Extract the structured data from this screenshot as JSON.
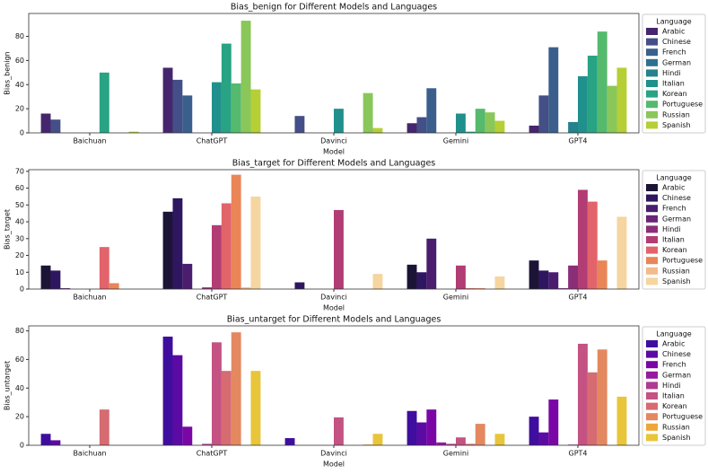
{
  "chart_data": [
    {
      "type": "bar",
      "title": "Bias_benign for Different Models and Languages",
      "xlabel": "Model",
      "ylabel": "Bias_benign",
      "categories": [
        "Baichuan",
        "ChatGPT",
        "Davinci",
        "Gemini",
        "GPT4"
      ],
      "legend_title": "Language",
      "legend": "outside right",
      "ylim": [
        0,
        99
      ],
      "yticks": [
        0,
        20,
        40,
        60,
        80
      ],
      "series": [
        {
          "name": "Arabic",
          "color": "#45266e",
          "values": [
            16,
            54,
            0,
            8,
            6
          ]
        },
        {
          "name": "Chinese",
          "color": "#434f86",
          "values": [
            11,
            44,
            14,
            13,
            31
          ]
        },
        {
          "name": "French",
          "color": "#3a5f8d",
          "values": [
            0,
            31,
            0,
            37,
            71
          ]
        },
        {
          "name": "German",
          "color": "#2e7090",
          "values": [
            0,
            0,
            0,
            0,
            0
          ]
        },
        {
          "name": "Hindi",
          "color": "#25818e",
          "values": [
            0,
            0,
            0,
            0,
            9
          ]
        },
        {
          "name": "Italian",
          "color": "#20908c",
          "values": [
            0,
            42,
            20,
            16,
            47
          ]
        },
        {
          "name": "Korean",
          "color": "#28a383",
          "values": [
            50,
            74,
            0,
            1,
            64
          ]
        },
        {
          "name": "Portuguese",
          "color": "#55b96e",
          "values": [
            0,
            41,
            0,
            20,
            84
          ]
        },
        {
          "name": "Russian",
          "color": "#8ac75a",
          "values": [
            0,
            93,
            33,
            17,
            39
          ]
        },
        {
          "name": "Spanish",
          "color": "#b5cf35",
          "values": [
            1,
            36,
            4,
            10,
            54
          ]
        }
      ]
    },
    {
      "type": "bar",
      "title": "Bias_target for Different Models and Languages",
      "xlabel": "Model",
      "ylabel": "Bias_target",
      "categories": [
        "Baichuan",
        "ChatGPT",
        "Davinci",
        "Gemini",
        "GPT4"
      ],
      "legend_title": "Language",
      "legend": "outside right",
      "ylim": [
        0,
        71
      ],
      "yticks": [
        0,
        10,
        20,
        30,
        40,
        50,
        60,
        70
      ],
      "series": [
        {
          "name": "Arabic",
          "color": "#1c1436",
          "values": [
            14,
            46,
            0,
            14.5,
            17
          ]
        },
        {
          "name": "Chinese",
          "color": "#2f1660",
          "values": [
            11,
            54,
            4,
            10,
            11
          ]
        },
        {
          "name": "French",
          "color": "#4a1d6f",
          "values": [
            0.5,
            15,
            0,
            30,
            10
          ]
        },
        {
          "name": "German",
          "color": "#6a2576",
          "values": [
            0,
            0,
            0,
            0,
            0.5
          ]
        },
        {
          "name": "Hindi",
          "color": "#8b2e78",
          "values": [
            0,
            1,
            0,
            0,
            14
          ]
        },
        {
          "name": "Italian",
          "color": "#b23c74",
          "values": [
            0,
            38,
            47,
            14,
            59
          ]
        },
        {
          "name": "Korean",
          "color": "#e2646a",
          "values": [
            25,
            51,
            0,
            0.5,
            52
          ]
        },
        {
          "name": "Portuguese",
          "color": "#ea8558",
          "values": [
            3.5,
            68,
            0,
            0.5,
            17
          ]
        },
        {
          "name": "Russian",
          "color": "#f3bb8a",
          "values": [
            0,
            1,
            0,
            0,
            0
          ]
        },
        {
          "name": "Spanish",
          "color": "#f5d5a0",
          "values": [
            0,
            55,
            9,
            7.5,
            43
          ]
        }
      ]
    },
    {
      "type": "bar",
      "title": "Bias_untarget for Different Models and Languages",
      "xlabel": "Model",
      "ylabel": "Bias_untarget",
      "categories": [
        "Baichuan",
        "ChatGPT",
        "Davinci",
        "Gemini",
        "GPT4"
      ],
      "legend_title": "Language",
      "legend": "outside right",
      "ylim": [
        0,
        83.5
      ],
      "yticks": [
        0,
        20,
        40,
        60,
        80
      ],
      "series": [
        {
          "name": "Arabic",
          "color": "#3f0e9e",
          "values": [
            8,
            76,
            5,
            24,
            20
          ]
        },
        {
          "name": "Chinese",
          "color": "#5c0aa4",
          "values": [
            3.5,
            63,
            0,
            16,
            9
          ]
        },
        {
          "name": "French",
          "color": "#7a07a5",
          "values": [
            0,
            13,
            0,
            25,
            32
          ]
        },
        {
          "name": "German",
          "color": "#951aa0",
          "values": [
            0,
            0,
            0,
            2,
            0
          ]
        },
        {
          "name": "Hindi",
          "color": "#ae3a93",
          "values": [
            0,
            1,
            0,
            1,
            0.5
          ]
        },
        {
          "name": "Italian",
          "color": "#c45283",
          "values": [
            0,
            72,
            19.5,
            5.5,
            71
          ]
        },
        {
          "name": "Korean",
          "color": "#d66b72",
          "values": [
            25,
            52,
            0,
            1,
            51
          ]
        },
        {
          "name": "Portuguese",
          "color": "#e48860",
          "values": [
            0,
            79,
            0,
            15,
            67
          ]
        },
        {
          "name": "Russian",
          "color": "#eea63a",
          "values": [
            0,
            0,
            0.5,
            0,
            0
          ]
        },
        {
          "name": "Spanish",
          "color": "#e8c53a",
          "values": [
            0,
            52,
            8,
            8,
            34
          ]
        }
      ]
    }
  ]
}
